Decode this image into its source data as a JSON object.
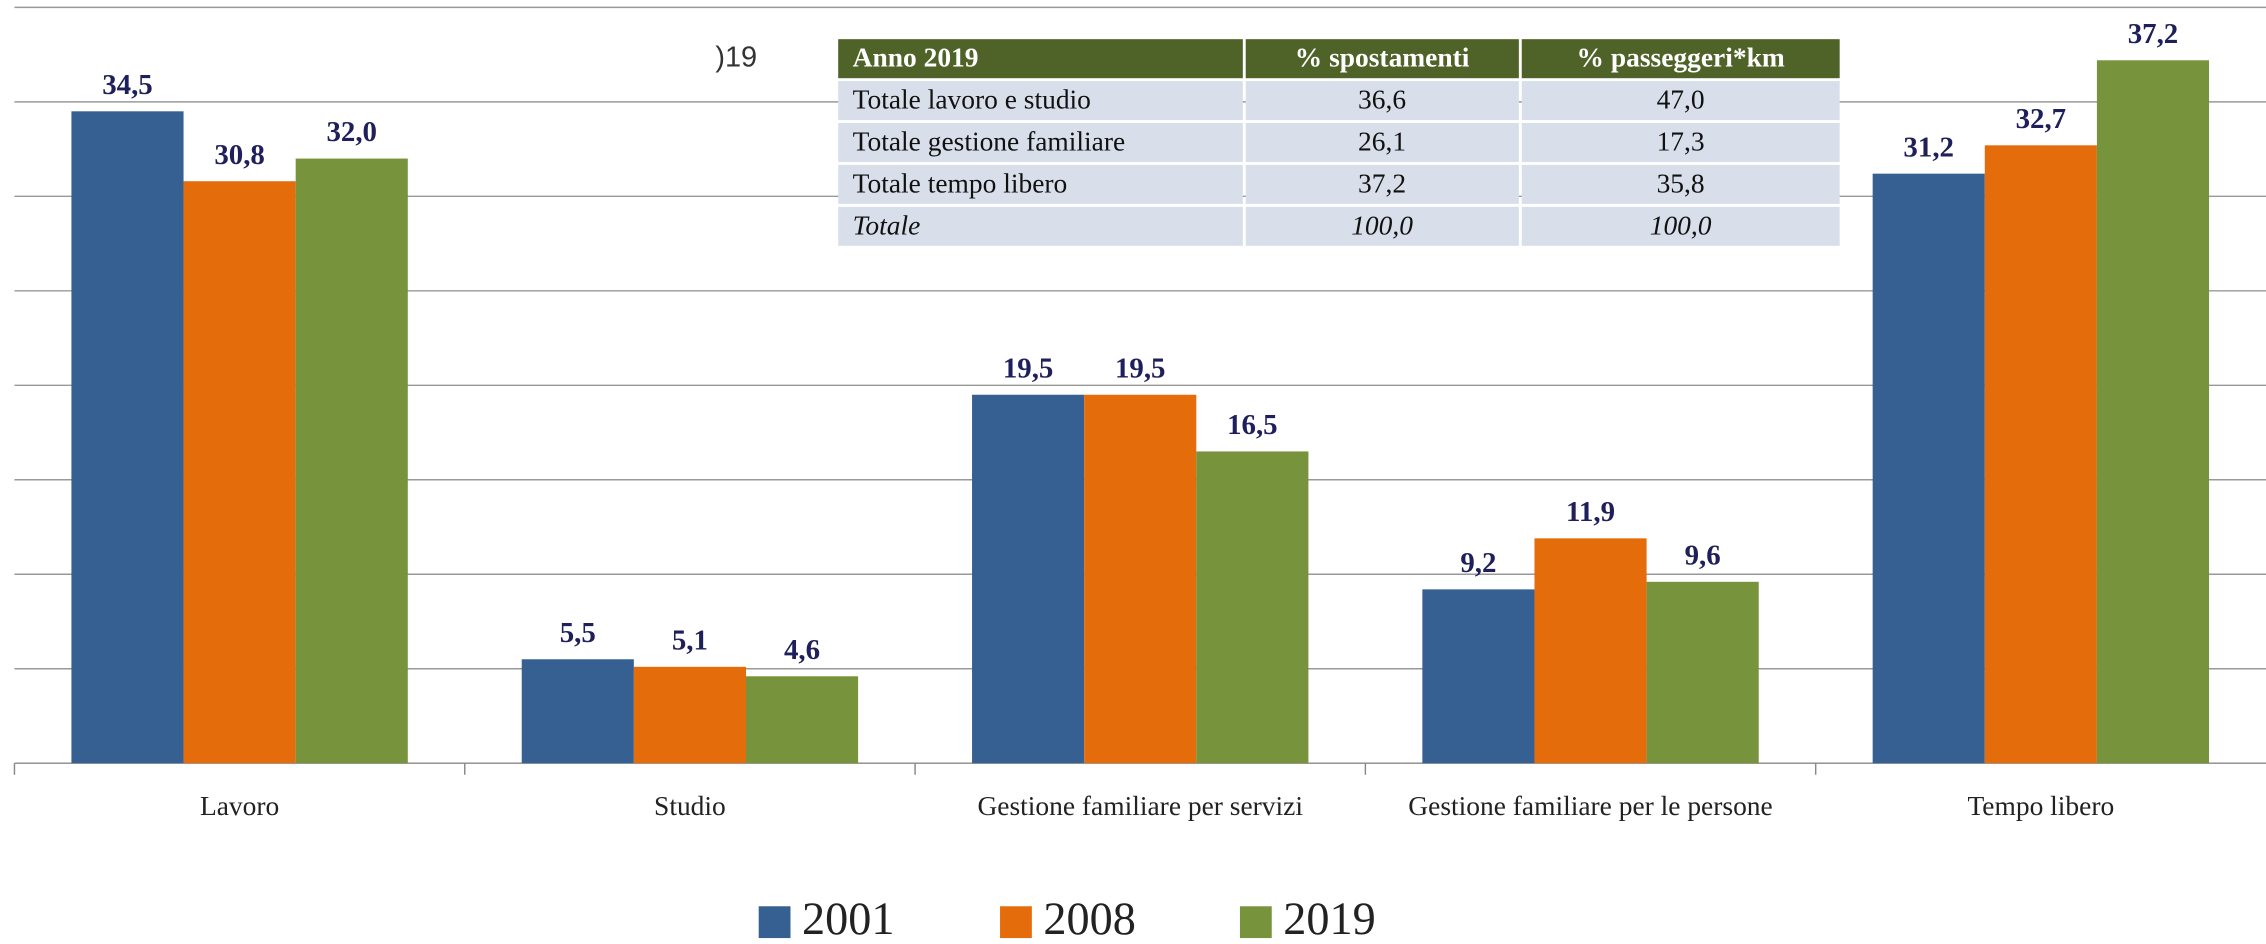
{
  "chart_data": {
    "type": "bar",
    "annotation": ")19",
    "categories": [
      "Lavoro",
      "Studio",
      "Gestione familiare per servizi",
      "Gestione familiare per le persone",
      "Tempo libero"
    ],
    "series": [
      {
        "name": "2001",
        "color": "#376092",
        "values": [
          34.5,
          5.5,
          19.5,
          9.2,
          31.2
        ],
        "value_labels": [
          "34,5",
          "5,5",
          "19,5",
          "9,2",
          "31,2"
        ]
      },
      {
        "name": "2008",
        "color": "#e46c0a",
        "values": [
          30.8,
          5.1,
          19.5,
          11.9,
          32.7
        ],
        "value_labels": [
          "30,8",
          "5,1",
          "19,5",
          "11,9",
          "32,7"
        ]
      },
      {
        "name": "2019",
        "color": "#77933c",
        "values": [
          32.0,
          4.6,
          16.5,
          9.6,
          37.2
        ],
        "value_labels": [
          "32,0",
          "4,6",
          "16,5",
          "9,6",
          "37,2"
        ]
      }
    ],
    "ylim": [
      0,
      40
    ],
    "yticks": [
      0,
      5,
      10,
      15,
      20,
      25,
      30,
      35,
      40
    ],
    "grid": true,
    "legend": "bottom"
  },
  "table": {
    "header": [
      "Anno 2019",
      "% spostamenti",
      "% passeggeri*km"
    ],
    "rows": [
      [
        "Totale lavoro e studio",
        "36,6",
        "47,0"
      ],
      [
        "Totale gestione familiare",
        "26,1",
        "17,3"
      ],
      [
        "Totale tempo libero",
        "37,2",
        "35,8"
      ],
      [
        "Totale",
        "100,0",
        "100,0"
      ]
    ]
  }
}
